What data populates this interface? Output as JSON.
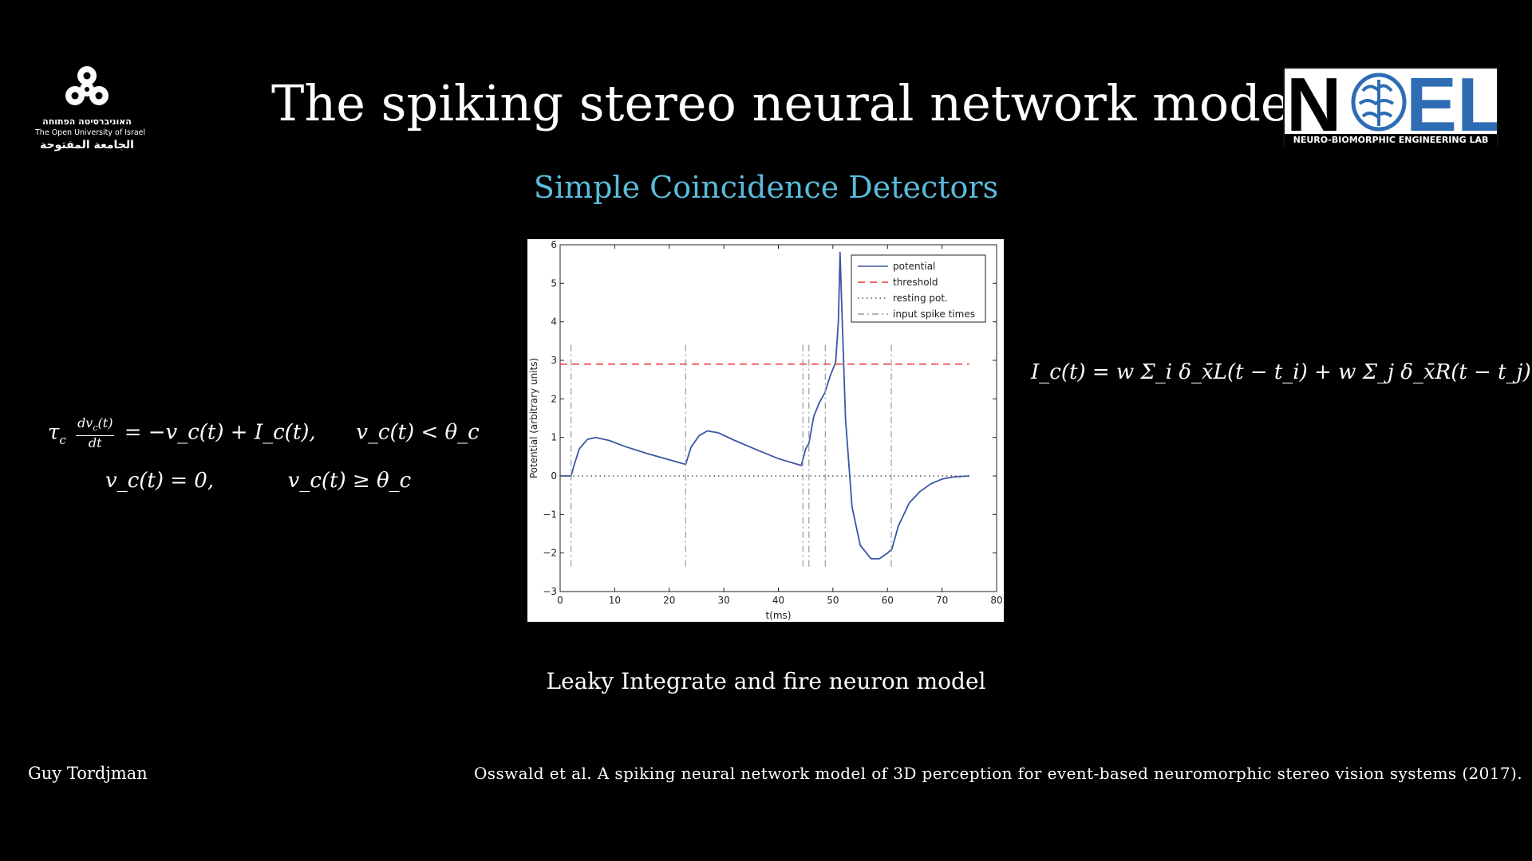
{
  "slide": {
    "title": "The spiking stereo neural network model",
    "subtitle": "Simple Coincidence Detectors",
    "caption": "Leaky Integrate and fire neuron model",
    "author": "Guy Tordjman",
    "citation": "Osswald et al. A spiking neural network model of 3D perception for event-based neuromorphic stereo vision systems (2017).",
    "subtitle_color": "#5bbbd9"
  },
  "logos": {
    "open_university": {
      "hebrew": "האוניברסיטה הפתוחה",
      "english": "The Open University of Israel",
      "arabic": "الجامعة المفتوحة",
      "icon": "trefoil-emblem-icon"
    },
    "noel": {
      "wordmark_n": "N",
      "wordmark_el": "EL",
      "tagline": "NEURO-BIOMORPHIC ENGINEERING LAB",
      "icon": "brain-icon",
      "accent_color": "#2e6db4"
    }
  },
  "equations": {
    "lif_line1_lhs_tau": "τ",
    "lif_frac_num": "dv",
    "lif_frac_den": "dt",
    "lif_line1_rhs": "= −v_c(t) + I_c(t),",
    "lif_line1_cond": "v_c(t) < θ_c",
    "lif_line2": "v_c(t) = 0,",
    "lif_line2_cond": "v_c(t) ≥ θ_c",
    "input_current": "I_c(t) = w Σ_i δ_x̄L(t − t_i) + w Σ_j δ_x̄R(t − t_j)"
  },
  "chart_data": {
    "type": "line",
    "xlabel": "t(ms)",
    "ylabel": "Potential (arbitrary units)",
    "xlim": [
      0,
      80
    ],
    "ylim": [
      -3,
      6
    ],
    "xticks": [
      0,
      10,
      20,
      30,
      40,
      50,
      60,
      70,
      80
    ],
    "yticks": [
      -3,
      -2,
      -1,
      0,
      1,
      2,
      3,
      4,
      5,
      6
    ],
    "grid": false,
    "legend_position": "top-right",
    "series": [
      {
        "name": "potential",
        "style": "solid",
        "color": "#3b56a6",
        "points": [
          [
            0,
            0
          ],
          [
            2,
            0
          ],
          [
            2.5,
            0.25
          ],
          [
            3.5,
            0.7
          ],
          [
            5,
            0.95
          ],
          [
            6.5,
            1.0
          ],
          [
            9,
            0.92
          ],
          [
            12,
            0.76
          ],
          [
            16,
            0.58
          ],
          [
            20,
            0.42
          ],
          [
            23,
            0.3
          ],
          [
            24,
            0.75
          ],
          [
            25.5,
            1.05
          ],
          [
            27,
            1.17
          ],
          [
            29,
            1.12
          ],
          [
            32,
            0.92
          ],
          [
            36,
            0.68
          ],
          [
            40,
            0.45
          ],
          [
            44.2,
            0.27
          ],
          [
            45,
            0.7
          ],
          [
            45.6,
            0.85
          ],
          [
            46.5,
            1.55
          ],
          [
            47.5,
            1.9
          ],
          [
            48.5,
            2.15
          ],
          [
            49.5,
            2.6
          ],
          [
            50.5,
            2.95
          ],
          [
            51,
            4.0
          ],
          [
            51.3,
            5.8
          ],
          [
            51.6,
            4.5
          ],
          [
            52.3,
            1.5
          ],
          [
            53.5,
            -0.8
          ],
          [
            55,
            -1.8
          ],
          [
            57,
            -2.15
          ],
          [
            58.5,
            -2.15
          ],
          [
            60,
            -2.0
          ],
          [
            60.8,
            -1.9
          ],
          [
            62,
            -1.3
          ],
          [
            64,
            -0.7
          ],
          [
            66,
            -0.4
          ],
          [
            68,
            -0.2
          ],
          [
            70,
            -0.08
          ],
          [
            72,
            -0.03
          ],
          [
            75,
            0
          ]
        ]
      },
      {
        "name": "threshold",
        "style": "dashed",
        "color": "#ef3333",
        "points": [
          [
            0,
            2.9
          ],
          [
            75,
            2.9
          ]
        ]
      },
      {
        "name": "resting pot.",
        "style": "dotted",
        "color": "#555555",
        "points": [
          [
            0,
            0
          ],
          [
            75,
            0
          ]
        ]
      },
      {
        "name": "input spike times",
        "style": "dashdot",
        "color": "#999999",
        "spike_times": [
          2,
          23,
          44.5,
          45.6,
          48.6,
          60.7
        ],
        "y_range": [
          -2.35,
          3.4
        ]
      }
    ]
  }
}
